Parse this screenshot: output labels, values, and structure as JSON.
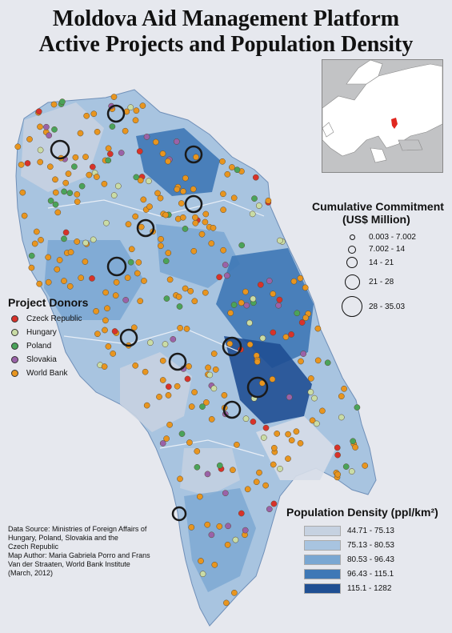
{
  "title_lines": [
    "Moldova Aid Management Platform",
    "Active Projects and Population Density"
  ],
  "colors": {
    "background": "#e6e8ee",
    "czech_republic": "#d8322a",
    "hungary": "#c9dca6",
    "poland": "#4aa35a",
    "slovakia": "#9a62a8",
    "world_bank": "#e8951f",
    "density_1": "#c6d2e1",
    "density_2": "#a8c4e0",
    "density_3": "#7aa7d2",
    "density_4": "#3e78b6",
    "density_5": "#1f4f93"
  },
  "donors_legend": {
    "heading": "Project Donors",
    "items": [
      {
        "label": "Czeck Republic",
        "color": "#d8322a"
      },
      {
        "label": "Hungary",
        "color": "#c9dca6"
      },
      {
        "label": "Poland",
        "color": "#4aa35a"
      },
      {
        "label": "Slovakia",
        "color": "#9a62a8"
      },
      {
        "label": "World Bank",
        "color": "#e8951f"
      }
    ]
  },
  "commitment_legend": {
    "heading_line1": "Cumulative Commitment",
    "heading_line2": "(US$ Million)",
    "items": [
      {
        "label": "0.003 - 7.002"
      },
      {
        "label": "7.002 - 14"
      },
      {
        "label": "14 - 21"
      },
      {
        "label": "21 - 28"
      },
      {
        "label": "28 - 35.03"
      }
    ]
  },
  "density_legend": {
    "heading": "Population Density (ppl/km²)",
    "items": [
      {
        "label": "44.71 - 75.13",
        "color": "#c6d2e1"
      },
      {
        "label": "75.13 - 80.53",
        "color": "#a8c4e0"
      },
      {
        "label": "80.53 - 96.43",
        "color": "#7aa7d2"
      },
      {
        "label": "96.43 - 115.1",
        "color": "#3e78b6"
      },
      {
        "label": "115.1 - 1282",
        "color": "#1f4f93"
      }
    ]
  },
  "source_lines": [
    "Data Source: Ministries of Foreign Affairs of",
    "Hungary, Poland, Slovakia and the",
    "Czech Republic",
    "Map Author: Maria Gabriela Porro and Frans",
    "Van der Straaten, World Bank Institute",
    "(March, 2012)"
  ]
}
